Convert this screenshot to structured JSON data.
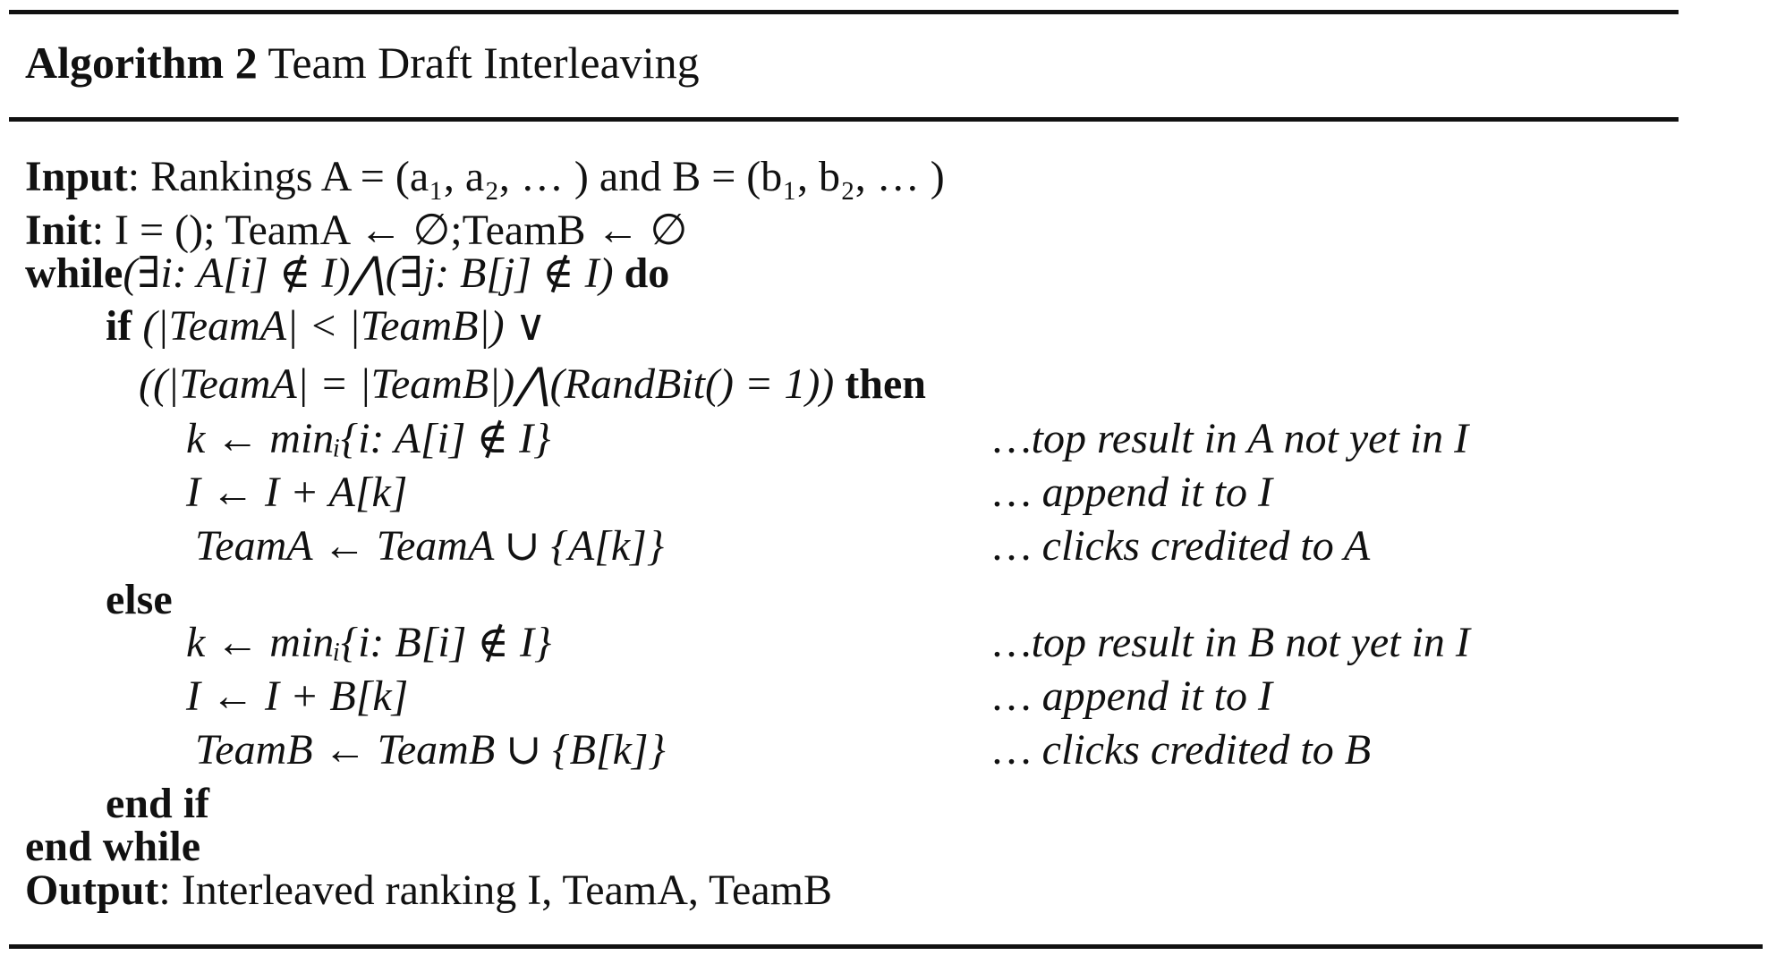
{
  "caption": {
    "label": "Algorithm 2",
    "title": "Team Draft Interleaving"
  },
  "lines": [
    {
      "keyword": "Input",
      "text": ": Rankings A = (a₁, a₂, … ) and B = (b₁, b₂, … )"
    },
    {
      "keyword": "Init",
      "text": ": I = (); TeamA ← ∅;TeamB ← ∅"
    },
    {
      "keyword": "while",
      "text": "(∃i: A[i] ∉ I)⋀(∃j: B[j] ∉ I)",
      "keyword_end": "do"
    },
    {
      "keyword": "if",
      "text": "(|TeamA| < |TeamB|) ∨"
    },
    {
      "text": "((|TeamA| = |TeamB|)⋀(RandBit() = 1))",
      "keyword_end": "then"
    },
    {
      "text": "k ← minᵢ{i: A[i] ∉ I}",
      "comment": "…top result in A not yet in I"
    },
    {
      "text": "I ← I + A[k]",
      "comment": "… append it to I"
    },
    {
      "text": "TeamA ← TeamA ∪ {A[k]}",
      "comment": "… clicks credited to A"
    },
    {
      "keyword": "else"
    },
    {
      "text": "k ← minᵢ{i: B[i] ∉ I}",
      "comment": "…top result in B not yet in I"
    },
    {
      "text": "I ← I + B[k]",
      "comment": "… append it to I"
    },
    {
      "text": "TeamB ← TeamB ∪ {B[k]}",
      "comment": "… clicks credited to B"
    },
    {
      "keyword": "end if"
    },
    {
      "keyword": "end while"
    },
    {
      "keyword": "Output",
      "text": ": Interleaved ranking I, TeamA, TeamB"
    }
  ]
}
